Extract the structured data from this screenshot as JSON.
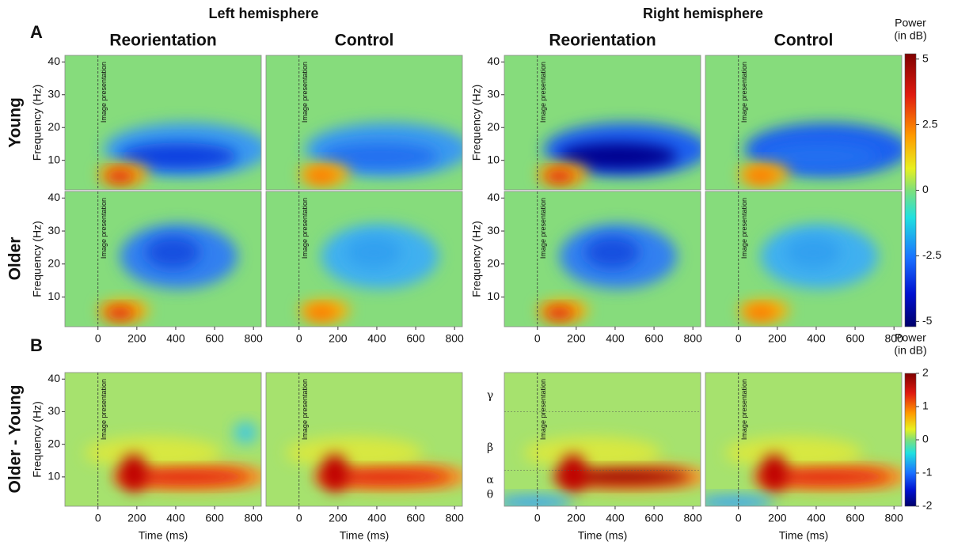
{
  "figure": {
    "panel_labels": [
      "A",
      "B"
    ],
    "hemispheres": [
      "Left hemisphere",
      "Right hemisphere"
    ],
    "conditions": [
      "Reorientation",
      "Control",
      "Reorientation",
      "Control"
    ],
    "rows": [
      "Young",
      "Older",
      "Older - Young"
    ],
    "y_axis_label": "Frequency (Hz)",
    "x_axis_label": "Time (ms)",
    "event_label": "Image presentation",
    "xlim": [
      -170,
      840
    ],
    "xticks": [
      0,
      200,
      400,
      600,
      800
    ],
    "ylim": [
      1,
      42
    ],
    "yticks": [
      10,
      20,
      30,
      40
    ],
    "bands": [
      "γ",
      "β",
      "α",
      "θ"
    ],
    "colorbars": [
      {
        "title": [
          "Power",
          "(in dB)"
        ],
        "lim": [
          -5.2,
          5.2
        ],
        "ticks": [
          5,
          2.5,
          0,
          -2.5,
          -5
        ]
      },
      {
        "title": [
          "Power",
          "(in dB)"
        ],
        "lim": [
          -2,
          2
        ],
        "ticks": [
          2,
          1,
          0,
          -1,
          -2
        ]
      }
    ]
  }
}
